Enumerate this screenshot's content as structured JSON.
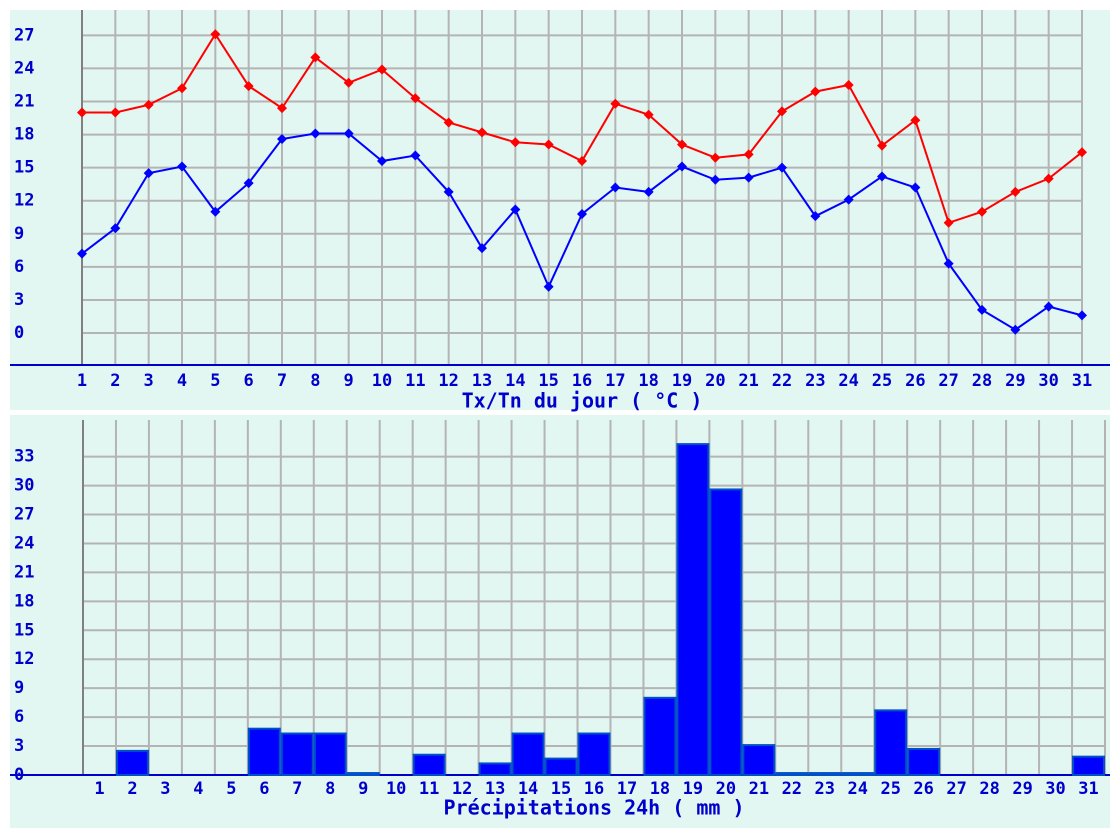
{
  "chart_data": [
    {
      "type": "line",
      "xlabel": "Tx/Tn du jour ( °C )",
      "categories": [
        "1",
        "2",
        "3",
        "4",
        "5",
        "6",
        "7",
        "8",
        "9",
        "10",
        "11",
        "12",
        "13",
        "14",
        "15",
        "16",
        "17",
        "18",
        "19",
        "20",
        "21",
        "22",
        "23",
        "24",
        "25",
        "26",
        "27",
        "28",
        "29",
        "30",
        "31"
      ],
      "series": [
        {
          "name": "Tx",
          "color": "#ff0000",
          "values": [
            20,
            20,
            20.7,
            22.2,
            27.1,
            22.4,
            20.4,
            25,
            22.7,
            23.9,
            21.3,
            19.1,
            18.2,
            17.3,
            17.1,
            15.6,
            20.8,
            19.8,
            17.1,
            15.9,
            16.2,
            20.1,
            21.9,
            22.5,
            17,
            19.3,
            10,
            11,
            12.8,
            14,
            16.4
          ]
        },
        {
          "name": "Tn",
          "color": "#0000ff",
          "values": [
            7.2,
            9.5,
            14.5,
            15.1,
            11,
            13.6,
            17.6,
            18.1,
            18.1,
            15.6,
            16.1,
            12.8,
            7.7,
            11.2,
            4.2,
            10.8,
            13.2,
            12.8,
            15.1,
            13.9,
            14.1,
            15,
            10.6,
            12.1,
            14.2,
            13.2,
            6.3,
            2.1,
            0.3,
            2.4,
            1.6
          ]
        }
      ],
      "ylim": [
        -2.9,
        29.3
      ],
      "yticks": [
        0,
        3,
        6,
        9,
        12,
        15,
        18,
        21,
        24,
        27
      ],
      "grid": true
    },
    {
      "type": "bar",
      "xlabel": "Précipitations 24h ( mm )",
      "categories": [
        "1",
        "2",
        "3",
        "4",
        "5",
        "6",
        "7",
        "8",
        "9",
        "10",
        "11",
        "12",
        "13",
        "14",
        "15",
        "16",
        "17",
        "18",
        "19",
        "20",
        "21",
        "22",
        "23",
        "24",
        "25",
        "26",
        "27",
        "28",
        "29",
        "30",
        "31"
      ],
      "values": [
        0,
        2.5,
        0,
        0,
        0,
        4.8,
        4.3,
        4.3,
        0.2,
        0,
        2.1,
        0,
        1.2,
        4.3,
        1.7,
        4.3,
        0,
        8,
        34.3,
        29.6,
        3.1,
        0.2,
        0.2,
        0.2,
        6.7,
        2.7,
        0,
        0,
        0,
        0,
        1.9
      ],
      "color": "#0000ff",
      "ylim": [
        0,
        36.8
      ],
      "yticks": [
        0,
        3,
        6,
        9,
        12,
        15,
        18,
        21,
        24,
        27,
        30,
        33
      ],
      "grid": true
    }
  ]
}
